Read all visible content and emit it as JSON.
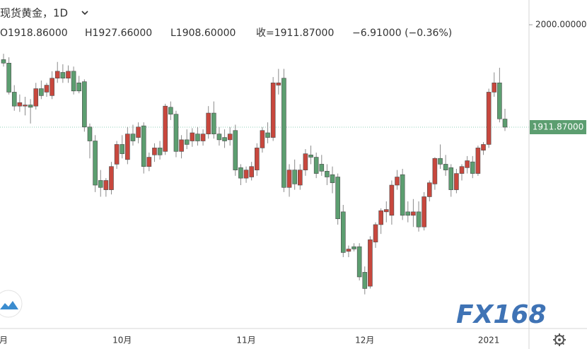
{
  "chart_data": {
    "type": "candlestick",
    "title": "现货黄金，1D",
    "ohlc_labels": [
      "O1918.86000",
      "H1927.66000",
      "L1908.60000",
      "收=1911.87000",
      "−6.91000 (−0.36%)"
    ],
    "last_price_label": {
      "value": 1911.87,
      "label": "1911.87000"
    },
    "watermark": "FX168",
    "up_color": "#c8473d",
    "down_color": "#5c9e70",
    "ylim": [
      1738.6,
      2021.3
    ],
    "yticks": [
      {
        "value": 2000,
        "label": "2000.00000"
      }
    ],
    "categories": [
      "月",
      null,
      null,
      null,
      null,
      null,
      null,
      null,
      null,
      null,
      null,
      null,
      null,
      null,
      null,
      null,
      null,
      null,
      null,
      null,
      null,
      null,
      "10月",
      null,
      null,
      null,
      null,
      null,
      null,
      null,
      null,
      null,
      null,
      null,
      null,
      null,
      null,
      null,
      null,
      null,
      null,
      null,
      null,
      null,
      null,
      "11月",
      null,
      null,
      null,
      null,
      null,
      null,
      null,
      null,
      null,
      null,
      null,
      null,
      null,
      null,
      null,
      null,
      null,
      null,
      null,
      null,
      null,
      "12月",
      null,
      null,
      null,
      null,
      null,
      null,
      null,
      null,
      null,
      null,
      null,
      null,
      null,
      null,
      null,
      null,
      null,
      null,
      null,
      null,
      null,
      null,
      "2021",
      null,
      null,
      null
    ],
    "open": [
      1970,
      1967,
      1942,
      1930,
      1930,
      1931,
      1930,
      1945,
      1942,
      1939,
      1954,
      1959,
      1954,
      1960,
      1950,
      1951,
      1912,
      1900,
      1866,
      1858,
      1858,
      1880,
      1897,
      1884,
      1906,
      1903,
      1913,
      1878,
      1888,
      1894,
      1891,
      1929,
      1923,
      1891,
      1901,
      1900,
      1906,
      1900,
      1906,
      1924,
      1906,
      1903,
      1901,
      1909,
      1877,
      1868,
      1869,
      1875,
      1894,
      1907,
      1903,
      1948,
      1954,
      1860,
      1875,
      1862,
      1875,
      1888,
      1886,
      1880,
      1874,
      1871,
      1869,
      1839,
      1805,
      1809,
      1809,
      1787,
      1775,
      1813,
      1828,
      1839,
      1836,
      1862,
      1871,
      1839,
      1836,
      1839,
      1826,
      1852,
      1863,
      1885,
      1880,
      1877,
      1858,
      1872,
      1877,
      1882,
      1872,
      1892,
      1897,
      1942,
      1950,
      1918.86
    ],
    "high": [
      1975,
      1972,
      1948,
      1940,
      1938,
      1936,
      1950,
      1952,
      1950,
      1960,
      1968,
      1966,
      1965,
      1964,
      1956,
      1953,
      1915,
      1905,
      1875,
      1868,
      1882,
      1900,
      1905,
      1912,
      1914,
      1916,
      1916,
      1890,
      1898,
      1900,
      1932,
      1934,
      1926,
      1905,
      1910,
      1911,
      1912,
      1910,
      1930,
      1934,
      1912,
      1910,
      1912,
      1914,
      1880,
      1878,
      1882,
      1898,
      1912,
      1916,
      1955,
      1962,
      1962,
      1880,
      1884,
      1880,
      1893,
      1896,
      1890,
      1888,
      1880,
      1878,
      1872,
      1845,
      1810,
      1812,
      1812,
      1792,
      1818,
      1830,
      1842,
      1848,
      1866,
      1875,
      1876,
      1848,
      1850,
      1848,
      1856,
      1866,
      1886,
      1897,
      1888,
      1880,
      1876,
      1880,
      1887,
      1887,
      1896,
      1899,
      1945,
      1959,
      1963,
      1927.66
    ],
    "low": [
      1964,
      1940,
      1926,
      1925,
      1922,
      1915,
      1927,
      1936,
      1938,
      1936,
      1950,
      1950,
      1950,
      1940,
      1941,
      1908,
      1885,
      1856,
      1852,
      1852,
      1854,
      1876,
      1885,
      1880,
      1896,
      1898,
      1872,
      1874,
      1882,
      1884,
      1888,
      1918,
      1886,
      1885,
      1893,
      1895,
      1896,
      1896,
      1902,
      1902,
      1896,
      1894,
      1896,
      1870,
      1862,
      1864,
      1866,
      1870,
      1890,
      1898,
      1900,
      1940,
      1856,
      1852,
      1858,
      1858,
      1870,
      1880,
      1868,
      1870,
      1862,
      1855,
      1828,
      1800,
      1800,
      1805,
      1780,
      1768,
      1773,
      1808,
      1820,
      1830,
      1828,
      1858,
      1832,
      1830,
      1826,
      1822,
      1823,
      1848,
      1858,
      1876,
      1870,
      1852,
      1855,
      1866,
      1872,
      1868,
      1870,
      1888,
      1894,
      1938,
      1916,
      1908.6
    ],
    "close": [
      1967,
      1942,
      1930,
      1933,
      1931,
      1929,
      1945,
      1939,
      1948,
      1954,
      1960,
      1954,
      1960,
      1943,
      1943,
      1912,
      1900,
      1862,
      1860,
      1866,
      1878,
      1897,
      1889,
      1906,
      1900,
      1912,
      1878,
      1886,
      1894,
      1888,
      1930,
      1923,
      1891,
      1901,
      1897,
      1907,
      1900,
      1906,
      1924,
      1906,
      1901,
      1900,
      1906,
      1875,
      1868,
      1875,
      1878,
      1894,
      1909,
      1903,
      1950,
      1950,
      1860,
      1875,
      1863,
      1875,
      1889,
      1886,
      1872,
      1874,
      1869,
      1864,
      1833,
      1804,
      1807,
      1807,
      1783,
      1773,
      1815,
      1828,
      1840,
      1841,
      1862,
      1869,
      1836,
      1836,
      1839,
      1826,
      1852,
      1864,
      1885,
      1880,
      1875,
      1858,
      1872,
      1878,
      1883,
      1872,
      1894,
      1897,
      1942,
      1950,
      1919,
      1911.87
    ]
  }
}
